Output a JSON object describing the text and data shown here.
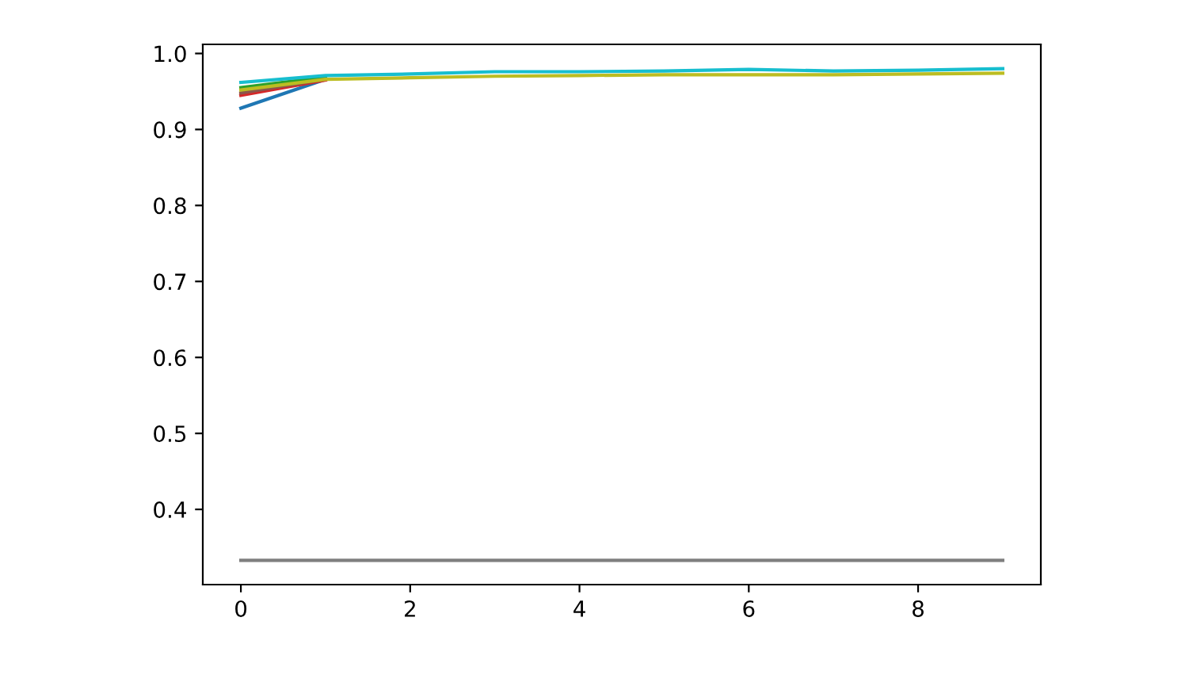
{
  "chart_data": {
    "type": "line",
    "x": [
      0,
      1,
      2,
      3,
      4,
      5,
      6,
      7,
      8,
      9
    ],
    "series": [
      {
        "color": "#1f77b4",
        "values": [
          0.928,
          0.966,
          null,
          null,
          null,
          null,
          null,
          null,
          null,
          null
        ]
      },
      {
        "color": "#2ca02c",
        "values": [
          0.955,
          0.969,
          null,
          null,
          null,
          null,
          null,
          null,
          null,
          null
        ]
      },
      {
        "color": "#d62728",
        "values": [
          0.945,
          0.965,
          null,
          null,
          null,
          null,
          null,
          null,
          null,
          null
        ]
      },
      {
        "color": "#8c564b",
        "values": [
          0.948,
          0.966,
          null,
          null,
          null,
          null,
          null,
          null,
          null,
          null
        ]
      },
      {
        "color": "#7f7f7f",
        "values": [
          0.333,
          0.333,
          0.333,
          0.333,
          0.333,
          0.333,
          0.333,
          0.333,
          0.333,
          0.333
        ]
      },
      {
        "color": "#bcbd22",
        "values": [
          0.952,
          0.966,
          0.968,
          0.97,
          0.971,
          0.972,
          0.972,
          0.972,
          0.973,
          0.974
        ]
      },
      {
        "color": "#17becf",
        "values": [
          0.962,
          0.971,
          0.973,
          0.976,
          0.976,
          0.977,
          0.979,
          0.977,
          0.978,
          0.98
        ]
      }
    ],
    "xlim": [
      -0.45,
      9.45
    ],
    "xticks": [
      0,
      2,
      4,
      6,
      8
    ],
    "ylim": [
      0.301,
      1.012
    ],
    "yticks": [
      0.4,
      0.5,
      0.6,
      0.7,
      0.8,
      0.9,
      {
        "value": 1.0,
        "label": "1.0"
      }
    ],
    "grid": false,
    "legend": false
  }
}
